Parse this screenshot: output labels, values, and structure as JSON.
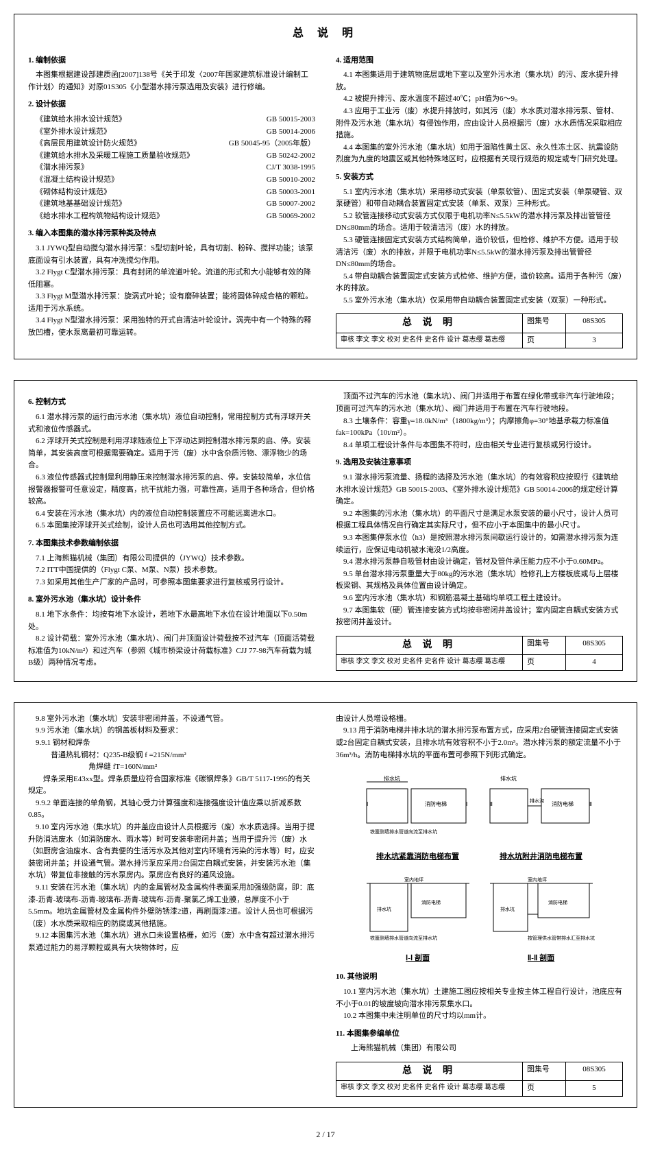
{
  "page_number": "2 / 17",
  "top_frame": {
    "title": "总 说 明",
    "left": {
      "s1": {
        "h": "1. 编制依据",
        "p": "本图集根据建设部建质函[2007]138号《关于印发〈2007年国家建筑标准设计编制工作计划〉的通知》对原01S305《小型潜水排污泵选用及安装》进行修编。"
      },
      "s2": {
        "h": "2. 设计依据",
        "stds": [
          {
            "name": "《建筑给水排水设计规范》",
            "code": "GB 50015-2003"
          },
          {
            "name": "《室外排水设计规范》",
            "code": "GB 50014-2006"
          },
          {
            "name": "《高层民用建筑设计防火规范》",
            "code": "GB 50045-95（2005年版）"
          },
          {
            "name": "《建筑给水排水及采暖工程施工质量验收规范》",
            "code": "GB 50242-2002"
          },
          {
            "name": "《潜水排污泵》",
            "code": "CJ/T 3038-1995"
          },
          {
            "name": "《混凝土结构设计规范》",
            "code": "GB 50010-2002"
          },
          {
            "name": "《砌体结构设计规范》",
            "code": "GB 50003-2001"
          },
          {
            "name": "《建筑地基基础设计规范》",
            "code": "GB 50007-2002"
          },
          {
            "name": "《给水排水工程构筑物结构设计规范》",
            "code": "GB 50069-2002"
          }
        ]
      },
      "s3": {
        "h": "3. 编入本图集的潜水排污泵种类及特点",
        "p1": "3.1 JYWQ型自动搅匀潜水排污泵：S型切割叶轮，具有切割、粉碎、搅拌功能；该泵底面设有引水装置，具有冲洗搅匀作用。",
        "p2": "3.2 Flygt C型潜水排污泵：具有封闭的单流道叶轮。流道的形式和大小能够有效的降低阻塞。",
        "p3": "3.3 Flygt M型潜水排污泵：旋涡式叶轮；设有磨碎装置；能将固体碎成合格的颗粒。适用于污水系统。",
        "p4": "3.4 Flygt N型潜水排污泵：采用独特的开式自清洁叶轮设计。涡壳中有一个特殊的释放凹槽，使水泵离最初可靠运转。"
      }
    },
    "right": {
      "s4": {
        "h": "4. 适用范围",
        "p1": "4.1 本图集适用于建筑物底层或地下室以及室外污水池（集水坑）的污、废水提升排放。",
        "p2": "4.2 被提升排污、废水温度不超过40℃；pH值为6～9。",
        "p3": "4.3 应用于工业污（废）水提升排放时，如其污（废）水水质对潜水排污泵、管材、附件及污水池（集水坑）有侵蚀作用，应由设计人员根据污（废）水水质情况采取相应措施。",
        "p4": "4.4 本图集的室外污水池（集水坑）如用于湿陷性黄土区、永久性冻土区、抗震设防烈度为九度的地震区或其他特殊地区时，应根据有关现行规范的规定或专门研究处理。"
      },
      "s5": {
        "h": "5. 安装方式",
        "p1": "5.1 室内污水池（集水坑）采用移动式安装（单泵软管）、固定式安装（单泵硬管、双泵硬管）和带自动耦合装置固定式安装（单泵、双泵）三种形式。",
        "p2": "5.2 软管连接移动式安装方式仅限于电机功率N≤5.5kW的潜水排污泵及排出管管径DN≤80mm的场合。适用于较清洁污（废）水的排放。",
        "p3": "5.3 硬管连接固定式安装方式结构简单，造价较低，但检修、维护不方便。适用于较清洁污（废）水的排放，并限于电机功率N≤5.5kW的潜水排污泵及排出管管径DN≤80mm的场合。",
        "p4": "5.4 带自动耦合装置固定式安装方式检修、维护方便，造价较高。适用于各种污（废）水的排放。",
        "p5": "5.5 室外污水池（集水坑）仅采用带自动耦合装置固定式安装（双泵）一种形式。"
      }
    },
    "tb": {
      "title": "总 说 明",
      "album_label": "图集号",
      "album": "08S305",
      "row2": "审核 李文 李文 校对 史名件 史名件 设计 葛志缨 葛志缨",
      "page_label": "页",
      "page": "3"
    }
  },
  "mid_frame": {
    "left": {
      "s6": {
        "h": "6. 控制方式",
        "p1": "6.1 潜水排污泵的运行由污水池（集水坑）液位自动控制，常用控制方式有浮球开关式和液位传感器式。",
        "p2": "6.2 浮球开关式控制是利用浮球随液位上下浮动达到控制潜水排污泵的启、停。安装简单，其安装高度可根据需要确定。适用于污（废）水中含杂质污物、漂浮物少的场合。",
        "p3": "6.3 液位传感器式控制是利用静压来控制潜水排污泵的启、停。安装较简单，水位信报警器报警可任意设定，精度高，抗干扰能力强，可靠性高，适用于各种场合，但价格较高。",
        "p4": "6.4 安装在污水池（集水坑）内的液位自动控制装置应不可能远离进水口。",
        "p5": "6.5 本图集按浮球开关式绘制，设计人员也可选用其他控制方式。"
      },
      "s7": {
        "h": "7. 本图集技术参数编制依据",
        "p1": "7.1 上海熊猫机械（集团）有限公司提供的（JYWQ）技术参数。",
        "p2": "7.2 ITT中国提供的（Flygt C泵、M泵、N泵）技术参数。",
        "p3": "7.3 如采用其他生产厂家的产品时，可参照本图集要求进行复核或另行设计。"
      },
      "s8": {
        "h": "8. 室外污水池（集水坑）设计条件",
        "p1": "8.1 地下水条件：均按有地下水设计，若地下水最高地下水位在设计地面以下0.50m处。",
        "p2": "8.2 设计荷载：室外污水池（集水坑）、阀门井顶面设计荷载按不过汽车（顶面活荷载标准值为10kN/m²）和过汽车（参照《城市桥梁设计荷载标准》CJJ 77-98汽车荷载为城B级）两种情况考虑。"
      }
    },
    "right": {
      "p1": "顶面不过汽车的污水池（集水坑）、阀门井适用于布置在绿化带或非汽车行驶地段；顶面可过汽车的污水池（集水坑）、阀门井适用于布置在汽车行驶地段。",
      "p2": "8.3 土壤条件：容重γ=18.0kN/m³（1800kg/m³）；内摩擦角φ=30°地基承载力标准值 fak=100kPa（10t/m²）。",
      "p3": "8.4 单项工程设计条件与本图集不符时，应由相关专业进行复核或另行设计。",
      "s9": {
        "h": "9. 选用及安装注意事项",
        "p1": "9.1 潜水排污泵流量、扬程的选择及污水池（集水坑）的有效容积应按现行《建筑给水排水设计规范》GB 50015-2003、《室外排水设计规范》GB 50014-2006的规定经计算确定。",
        "p2": "9.2 本图集的污水池（集水坑）的平面尺寸是满足水泵安装的最小尺寸，设计人员可根据工程具体情况自行确定其实际尺寸，但不应小于本图集中的最小尺寸。",
        "p3": "9.3 本图集停泵水位（h3）是按照潜水排污泵间歇运行设计的，如需潜水排污泵为连续运行，应保证电动机被水淹没1/2高度。",
        "p4": "9.4 潜水排污泵静自吸管材由设计确定，管材及管件承压能力应不小于0.60MPa。",
        "p5": "9.5 单台潜水排污泵重量大于80kg的污水池（集水坑）检修孔上方楼板底或与上层楼板梁钢、其规格及具体位置由设计确定。",
        "p6": "9.6 室内污水池（集水坑）和钢筋混凝土基础均单项工程土建设计。",
        "p7": "9.7 本图集软（硬）管连接安装方式均按非密闭井盖设计；室内固定自耦式安装方式按密闭井盖设计。"
      }
    },
    "tb": {
      "title": "总 说 明",
      "album_label": "图集号",
      "album": "08S305",
      "row2": "审核 李文 李文 校对 史名件 史名件 设计 葛志缨 葛志缨",
      "page_label": "页",
      "page": "4"
    }
  },
  "bot_frame": {
    "left": {
      "p1": "9.8 室外污水池（集水坑）安装非密闭井盖，不设通气管。",
      "p2": "9.9 污水池（集水坑）的钢盖板材料及要求：",
      "p3": "9.9.1 钢材和焊条",
      "p4": "普通热轧钢材：Q235-B级钢 f =215N/mm²",
      "p5": "角焊缝 fT=160N/mm²",
      "p6": "焊条采用E43xx型。焊条质量应符合国家标准《碳钢焊条》GB/T 5117-1995的有关规定。",
      "p7": "9.9.2 单面连接的单角钢，其轴心受力计算强度和连接强度设计值应乘以折减系数0.85。",
      "p8": "9.10 室内污水池（集水坑）的井盖应由设计人员根据污（废）水水质选择。当用于提升防消洁废水（如消防废水、雨水等）时可安装非密闭井盖；当用于提升污（废）水（如厨房含油废水、含有粪便的生活污水及其他对室内环境有污染的污水等）时，应安装密闭井盖；并设通气管。潜水排污泵应采用2台固定自耦式安装，并安装污水池（集水坑）带复位非接触的污水泵房内。泵房应有良好的通风设施。",
      "p9": "9.11 安装在污水池（集水坑）内的金属管材及金属构件表面采用加强级防腐，即：底漆-沥青-玻璃布-沥青-玻璃布-沥青-玻璃布-沥青-聚氯乙烯工业膜，总厚度不小于5.5mm。地坑金属管材及金属构件外壁防锈漆2道，再刷面漆2道。设计人员也可根据污（废）水水质采取相应的防腐或其他措施。",
      "p10": "9.12 本图集污水池（集水坑）进水口未设置格栅，如污（废）水中含有超过潜水排污泵通过能力的易浮颗粒或具有大块物体时，应"
    },
    "right": {
      "p1": "由设计人员增设格栅。",
      "p2": "9.13 用于消防电梯井排水坑的潜水排污泵布置方式，应采用2台硬管连接固定式安装或2台固定自耦式安装，且排水坑有效容积不小于2.0m³。潜水排污泵的额定流量不小于36m³/h。消防电梯排水坑的平面布置可参照下列形式确定。",
      "diag1_title": "排水坑紧靠消防电梯布置",
      "diag2_title": "排水坑附井消防电梯布置",
      "diag_sec1": "Ⅰ-Ⅰ 剖面",
      "diag_sec2": "Ⅱ-Ⅱ 剖面",
      "diag_labels": {
        "a": "排水坑",
        "b": "消防电梯",
        "c": "排水沟",
        "d": "室内地坪",
        "e": "排水坑",
        "f": "铁篦侧墙排水管道向流至排水坑",
        "g": "按管理供水管带排水汇至排水坑"
      },
      "s10": {
        "h": "10. 其他说明",
        "p1": "10.1 室内污水池（集水坑）土建施工图应按相关专业按主体工程自行设计，池底应有不小于0.01的坡度坡向潜水排污泵集水口。",
        "p2": "10.2 本图集中未注明单位的尺寸均以mm计。"
      },
      "s11": {
        "h": "11. 本图集参编单位",
        "p1": "上海熊猫机械（集团）有限公司"
      }
    },
    "tb": {
      "title": "总 说 明",
      "album_label": "图集号",
      "album": "08S305",
      "row2": "审核 李文 李文 校对 史名件 史名件 设计 葛志缨 葛志缨",
      "page_label": "页",
      "page": "5"
    }
  }
}
